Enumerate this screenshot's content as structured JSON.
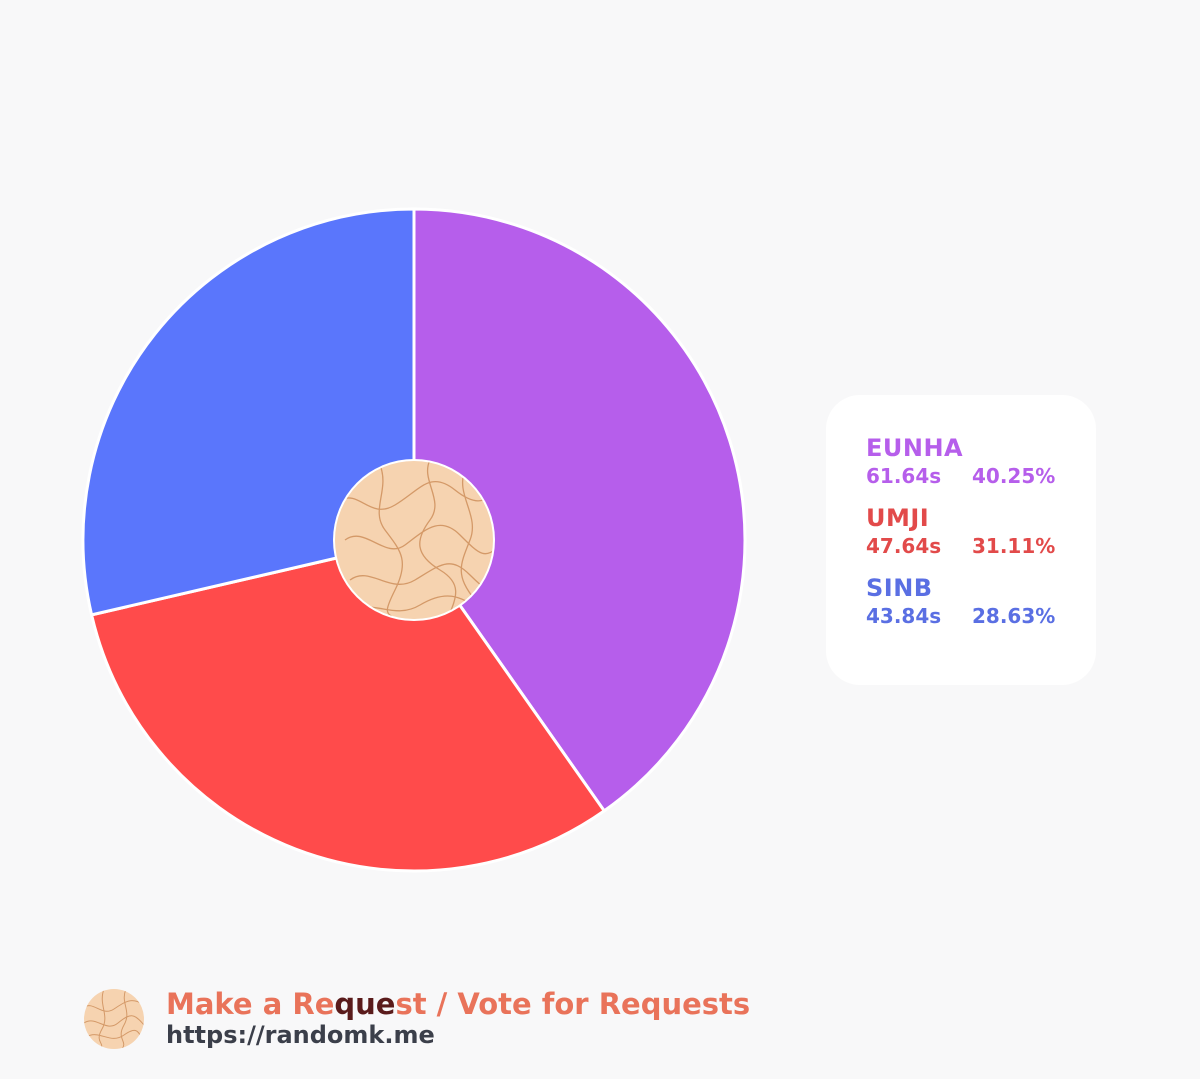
{
  "chart_data": {
    "type": "pie",
    "style": "donut",
    "start_angle_deg": 0,
    "direction": "clockwise",
    "categories": [
      "EUNHA",
      "UMJI",
      "SINB"
    ],
    "values": [
      61.64,
      47.64,
      43.84
    ],
    "value_labels": [
      "61.64s",
      "47.64s",
      "43.84s"
    ],
    "percent_labels": [
      "40.25%",
      "31.11%",
      "28.63%"
    ],
    "colors": [
      "#b65eeb",
      "#ff4b4b",
      "#5a76fc"
    ],
    "legend_placement": "right"
  },
  "legend": {
    "items": [
      {
        "name": "EUNHA",
        "value": "61.64s",
        "percent": "40.25%",
        "color": "#b65eeb"
      },
      {
        "name": "UMJI",
        "value": "47.64s",
        "percent": "31.11%",
        "color": "#e24a4a"
      },
      {
        "name": "SINB",
        "value": "43.84s",
        "percent": "28.63%",
        "color": "#5a6fe3"
      }
    ]
  },
  "footer": {
    "title_part1": "Make a Re",
    "title_highlight": "que",
    "title_part2": "st / Vote for Requests",
    "url": "https://randomk.me"
  }
}
